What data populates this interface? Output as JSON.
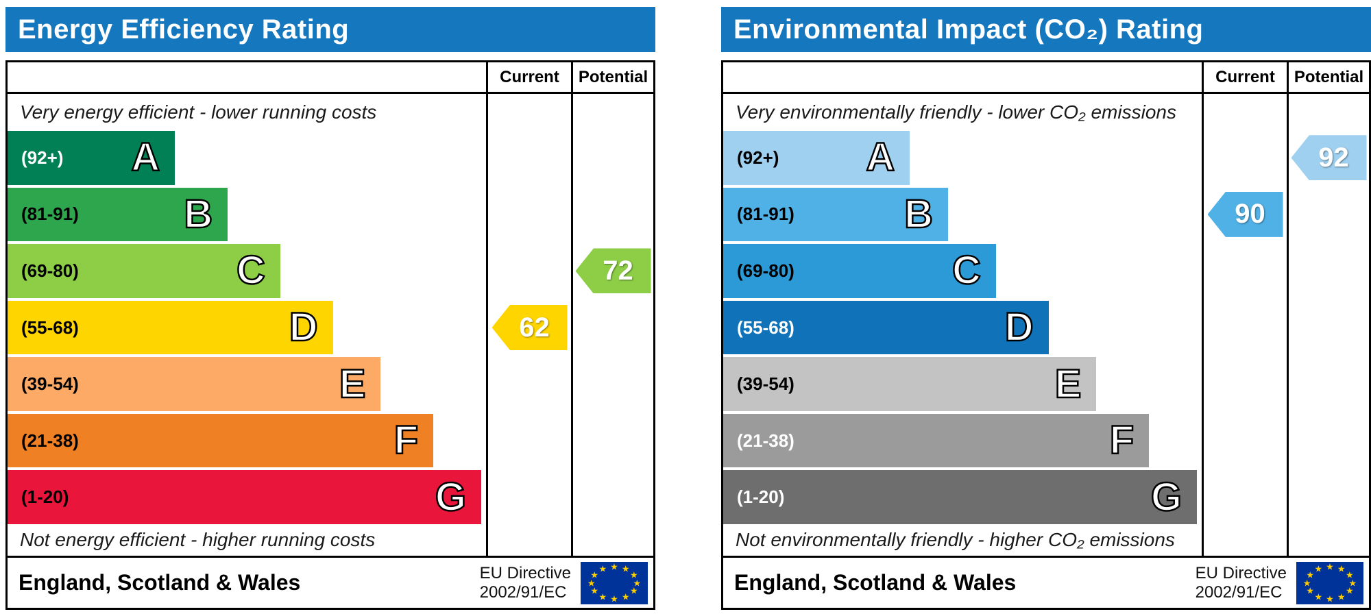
{
  "chart_data": [
    {
      "type": "bar",
      "title": "Energy Efficiency Rating",
      "header_color": "#1577bd",
      "columns": {
        "current": "Current",
        "potential": "Potential"
      },
      "top_note": "Very energy efficient - lower running costs",
      "bottom_note": "Not energy efficient - higher running costs",
      "bands": [
        {
          "letter": "A",
          "range": "(92+)",
          "color": "#008054",
          "label_color": "#ffffff",
          "width_pct": 35
        },
        {
          "letter": "B",
          "range": "(81-91)",
          "color": "#2ea64d",
          "label_color": "#000000",
          "width_pct": 46
        },
        {
          "letter": "C",
          "range": "(69-80)",
          "color": "#8dce46",
          "label_color": "#000000",
          "width_pct": 57
        },
        {
          "letter": "D",
          "range": "(55-68)",
          "color": "#ffd500",
          "label_color": "#000000",
          "width_pct": 68
        },
        {
          "letter": "E",
          "range": "(39-54)",
          "color": "#fcaa65",
          "label_color": "#000000",
          "width_pct": 78
        },
        {
          "letter": "F",
          "range": "(21-38)",
          "color": "#ef8023",
          "label_color": "#000000",
          "width_pct": 89
        },
        {
          "letter": "G",
          "range": "(1-20)",
          "color": "#e9153b",
          "label_color": "#000000",
          "width_pct": 99
        }
      ],
      "current": {
        "value": 62,
        "band": "D",
        "color": "#ffd500"
      },
      "potential": {
        "value": 72,
        "band": "C",
        "color": "#8dce46"
      },
      "footer": {
        "region": "England, Scotland & Wales",
        "directive_line1": "EU Directive",
        "directive_line2": "2002/91/EC"
      }
    },
    {
      "type": "bar",
      "title": "Environmental Impact (CO₂) Rating",
      "header_color": "#1577bd",
      "columns": {
        "current": "Current",
        "potential": "Potential"
      },
      "top_note": "Very environmentally friendly - lower CO₂ emissions",
      "bottom_note": "Not environmentally friendly - higher CO₂ emissions",
      "bands": [
        {
          "letter": "A",
          "range": "(92+)",
          "color": "#9fd0ef",
          "label_color": "#000000",
          "width_pct": 39
        },
        {
          "letter": "B",
          "range": "(81-91)",
          "color": "#50b1e6",
          "label_color": "#000000",
          "width_pct": 47
        },
        {
          "letter": "C",
          "range": "(69-80)",
          "color": "#2b9ad6",
          "label_color": "#000000",
          "width_pct": 57
        },
        {
          "letter": "D",
          "range": "(55-68)",
          "color": "#1072b8",
          "label_color": "#ffffff",
          "width_pct": 68
        },
        {
          "letter": "E",
          "range": "(39-54)",
          "color": "#c3c3c3",
          "label_color": "#000000",
          "width_pct": 78
        },
        {
          "letter": "F",
          "range": "(21-38)",
          "color": "#9b9b9b",
          "label_color": "#ffffff",
          "width_pct": 89
        },
        {
          "letter": "G",
          "range": "(1-20)",
          "color": "#6e6e6e",
          "label_color": "#ffffff",
          "width_pct": 99
        }
      ],
      "current": {
        "value": 90,
        "band": "B",
        "color": "#50b1e6"
      },
      "potential": {
        "value": 92,
        "band": "A",
        "color": "#9fd0ef"
      },
      "footer": {
        "region": "England, Scotland & Wales",
        "directive_line1": "EU Directive",
        "directive_line2": "2002/91/EC"
      }
    }
  ]
}
